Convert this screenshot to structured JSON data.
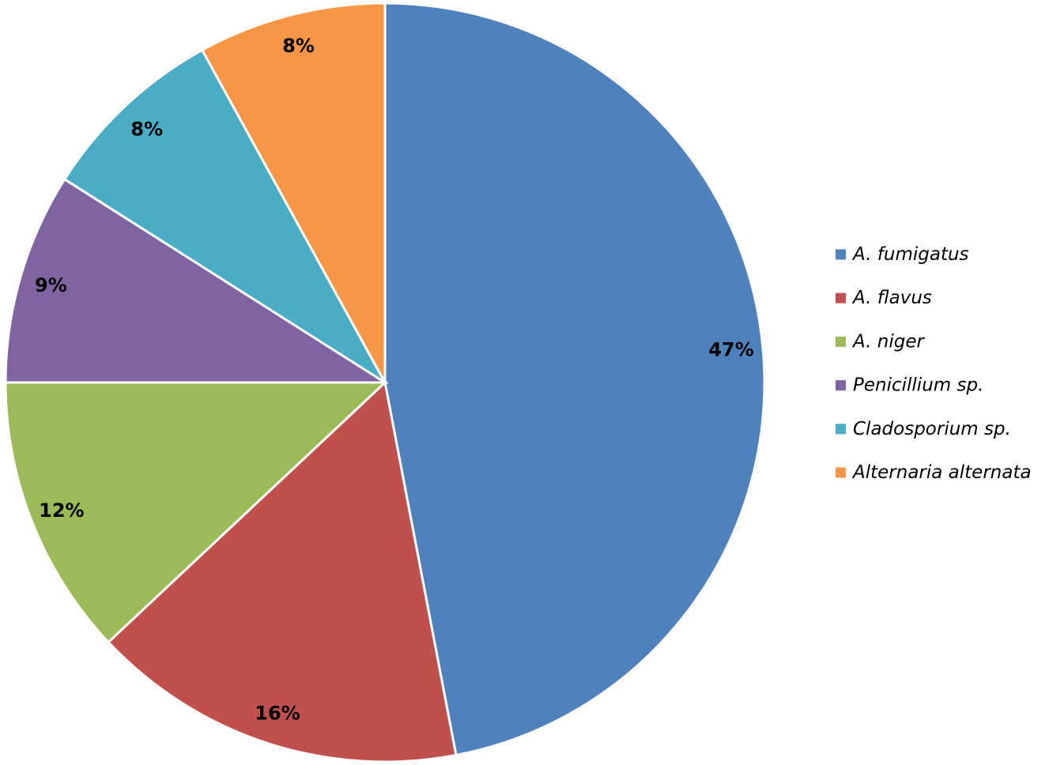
{
  "chart_data": {
    "type": "pie",
    "title": "",
    "start_angle_deg": 0,
    "direction": "clockwise",
    "legend_placement": "right",
    "slices": [
      {
        "name": "A. fumigatus",
        "value": 47,
        "label": "47%",
        "color": "#4F81BD"
      },
      {
        "name": "A. flavus",
        "value": 16,
        "label": "16%",
        "color": "#C0504D"
      },
      {
        "name": "A. niger",
        "value": 12,
        "label": "12%",
        "color": "#9BBB59"
      },
      {
        "name": "Penicillium sp.",
        "value": 9,
        "label": "9%",
        "color": "#8064A2"
      },
      {
        "name": "Cladosporium sp.",
        "value": 8,
        "label": "8%",
        "color": "#4BACC6"
      },
      {
        "name": "Alternaria alternata",
        "value": 8,
        "label": "8%",
        "color": "#F79646"
      }
    ]
  }
}
